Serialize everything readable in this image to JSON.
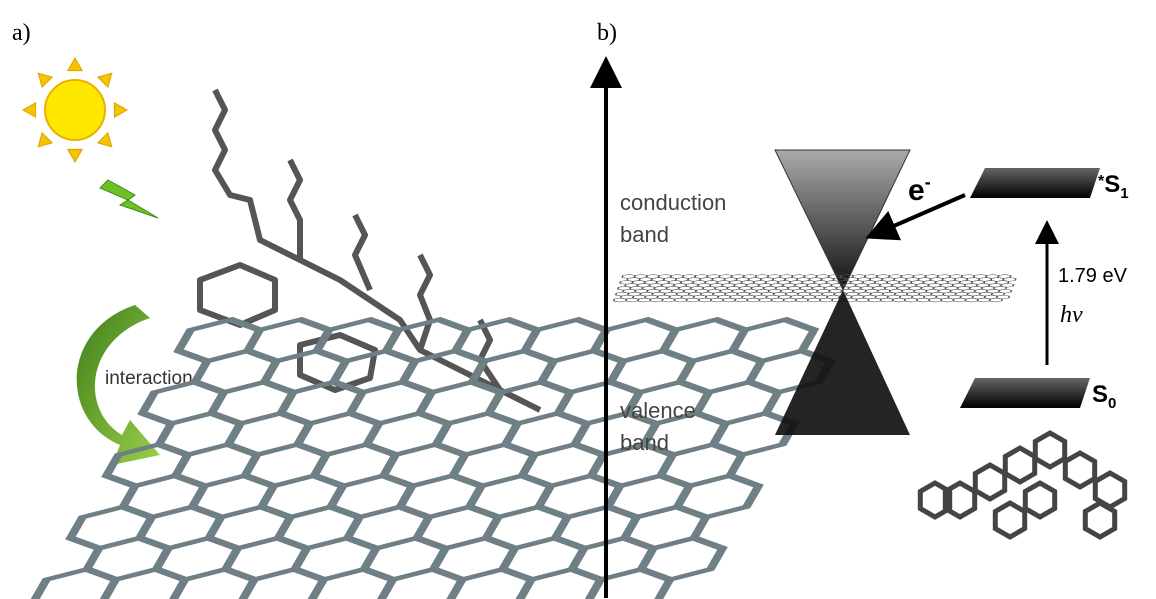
{
  "panel_a": {
    "label": "a)",
    "arrow_label": "interaction"
  },
  "panel_b": {
    "label": "b)",
    "conduction": [
      "conduction",
      "band"
    ],
    "valence": [
      "valence",
      "band"
    ],
    "electron": "e",
    "electron_charge": "-",
    "excited_state": {
      "prefix": "*",
      "symbol": "S",
      "subscript": "1"
    },
    "ground_state": {
      "symbol": "S",
      "subscript": "0"
    },
    "energy": "1.79 eV",
    "photon": "hν"
  }
}
